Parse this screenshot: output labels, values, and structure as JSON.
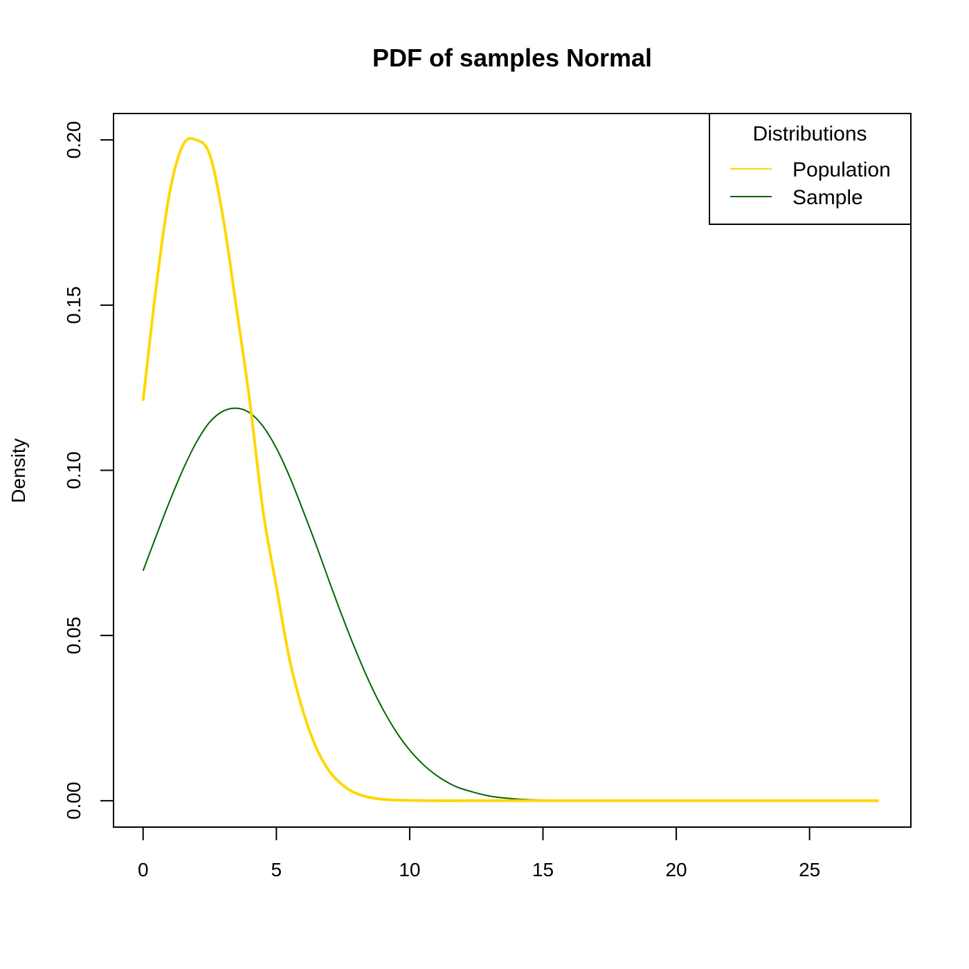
{
  "chart_data": {
    "type": "line",
    "title": "PDF of samples Normal",
    "xlabel": "",
    "ylabel": "Density",
    "xlim": [
      -1.11,
      28.8
    ],
    "ylim": [
      -0.008,
      0.208
    ],
    "x_ticks": [
      0,
      5,
      10,
      15,
      20,
      25
    ],
    "x_tick_labels": [
      "0",
      "5",
      "10",
      "15",
      "20",
      "25"
    ],
    "y_ticks": [
      0.0,
      0.05,
      0.1,
      0.15,
      0.2
    ],
    "y_tick_labels": [
      "0.00",
      "0.05",
      "0.10",
      "0.15",
      "0.20"
    ],
    "grid": false,
    "legend": {
      "title": "Distributions",
      "placement": "top-right",
      "entries": [
        "Population",
        "Sample"
      ]
    },
    "series": [
      {
        "name": "Population",
        "color": "#FFD700",
        "line_width": "thick",
        "x": [
          0,
          0.5,
          1,
          1.5,
          2,
          2.5,
          3,
          3.5,
          4,
          4.5,
          5,
          5.5,
          6,
          6.5,
          7,
          7.5,
          8,
          8.5,
          9,
          9.5,
          10,
          11,
          12,
          13,
          14,
          15,
          16,
          18,
          20,
          22,
          24,
          26,
          27.6
        ],
        "values": [
          0.121,
          0.1561,
          0.1842,
          0.1985,
          0.2,
          0.1955,
          0.1765,
          0.1492,
          0.121,
          0.0877,
          0.0648,
          0.0425,
          0.0271,
          0.0159,
          0.0088,
          0.0046,
          0.0022,
          0.001,
          0.0004,
          0.0002,
          0.0001,
          0.0,
          0.0,
          0.0,
          0.0,
          0.0,
          0.0,
          0.0,
          0.0,
          0.0,
          0.0,
          0.0,
          0.0
        ]
      },
      {
        "name": "Sample",
        "color": "#006400",
        "line_width": "thin",
        "x": [
          0,
          0.5,
          1,
          1.5,
          2,
          2.5,
          3,
          3.5,
          4,
          4.5,
          5,
          5.5,
          6,
          6.5,
          7,
          7.5,
          8,
          8.5,
          9,
          9.5,
          10,
          10.5,
          11,
          11.5,
          12,
          13,
          14,
          15,
          16,
          17,
          18,
          20,
          22,
          23.8
        ],
        "values": [
          0.0696,
          0.0803,
          0.0907,
          0.1003,
          0.1085,
          0.1146,
          0.1179,
          0.1188,
          0.1174,
          0.1133,
          0.1067,
          0.098,
          0.0878,
          0.0772,
          0.066,
          0.0552,
          0.045,
          0.0357,
          0.0276,
          0.0208,
          0.0153,
          0.011,
          0.0077,
          0.0052,
          0.0035,
          0.0014,
          0.0005,
          0.0002,
          0.0001,
          0.0,
          0.0,
          0.0,
          0.0,
          0.0
        ]
      }
    ]
  }
}
